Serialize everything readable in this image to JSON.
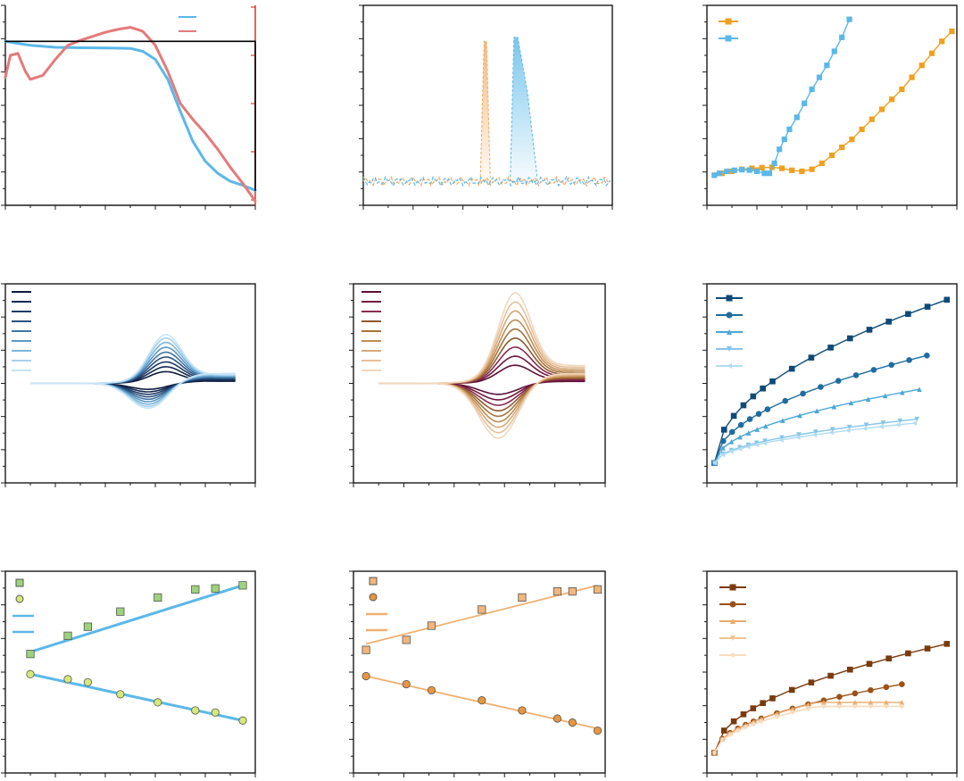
{
  "figure": {
    "colors": {
      "axis": "#1a1a1a",
      "right_axis": "#e53935"
    }
  },
  "chart_data": [
    {
      "type": "line",
      "ylim": [
        0,
        100
      ],
      "xlim": [
        0,
        10
      ],
      "y2lim": [
        0,
        100
      ],
      "legend": "top-right",
      "grid": false,
      "series": [
        {
          "color": "#5bb8e8",
          "axis": "left",
          "x": [
            0,
            0.5,
            1,
            2,
            3,
            4,
            5,
            5.5,
            6,
            6.5,
            7,
            7.5,
            8,
            8.5,
            9,
            9.5,
            10
          ],
          "y": [
            82,
            81,
            80,
            79,
            78.8,
            78.7,
            78.5,
            77,
            73,
            63,
            47,
            32,
            22,
            16,
            12,
            10,
            7.5
          ]
        },
        {
          "color": "#e47a7a",
          "axis": "right",
          "x": [
            0,
            0.2,
            0.5,
            0.8,
            1,
            1.5,
            2,
            2.5,
            3,
            3.5,
            4,
            4.5,
            5,
            5.5,
            6,
            6.5,
            7,
            7.5,
            8,
            8.5,
            9,
            9.5,
            10
          ],
          "y": [
            64,
            75,
            76,
            67,
            63,
            65,
            73,
            80,
            82.5,
            84.5,
            86.5,
            88,
            89,
            87,
            80,
            67,
            51,
            43,
            36,
            28,
            19,
            11,
            2
          ]
        },
        {
          "color": "#000000",
          "axis": "left",
          "x": [
            0,
            10,
            10
          ],
          "y": [
            82,
            82,
            7.5
          ]
        }
      ]
    },
    {
      "type": "area",
      "ylim": [
        0,
        100
      ],
      "xlim": [
        0,
        10
      ],
      "legend": "none",
      "grid": false,
      "series": [
        {
          "color": "#f0a95f",
          "x": [
            4.7,
            4.85,
            4.95,
            5.1
          ],
          "y": [
            12,
            82,
            82,
            12
          ]
        },
        {
          "color": "#5bb8e8",
          "x": [
            5.9,
            6.05,
            6.2,
            6.6,
            7.0
          ],
          "y": [
            12,
            84,
            84,
            56,
            12
          ]
        }
      ]
    },
    {
      "type": "line",
      "ylim": [
        0,
        100
      ],
      "xlim": [
        0,
        10
      ],
      "legend": "top-left",
      "grid": false,
      "series": [
        {
          "color": "#f0a020",
          "marker": "square",
          "x": [
            0.3,
            0.6,
            1,
            1.4,
            1.8,
            2.2,
            2.6,
            3,
            3.4,
            3.8,
            4.2,
            4.6,
            5,
            5.4,
            5.8,
            6.2,
            6.6,
            7,
            7.4,
            7.8,
            8.2,
            8.6,
            9,
            9.4,
            9.8
          ],
          "y": [
            15,
            16,
            17,
            18,
            18.5,
            18.8,
            19,
            18.5,
            17.5,
            17,
            18,
            21,
            25,
            29,
            33,
            38,
            43,
            48,
            53,
            58,
            64,
            70,
            76,
            82,
            87
          ]
        },
        {
          "color": "#5bb8e8",
          "marker": "square",
          "x": [
            0.3,
            0.5,
            0.8,
            1.1,
            1.4,
            1.7,
            2,
            2.3,
            2.5,
            2.7,
            2.9,
            3.1,
            3.3,
            3.6,
            3.9,
            4.2,
            4.5,
            4.8,
            5.1,
            5.4,
            5.7
          ],
          "y": [
            15,
            16,
            17,
            17.5,
            17.8,
            17.6,
            17,
            16,
            16,
            21,
            28,
            33,
            38,
            44,
            51,
            58,
            64,
            70,
            77,
            84,
            93
          ]
        }
      ]
    },
    {
      "type": "line",
      "ylim": [
        -100,
        100
      ],
      "xlim": [
        0,
        10
      ],
      "legend": "top-left",
      "grid": false,
      "series": [
        {
          "color": "#0d1b3d",
          "amp": 0.24
        },
        {
          "color": "#14284f",
          "amp": 0.34
        },
        {
          "color": "#1e3a66",
          "amp": 0.44
        },
        {
          "color": "#2a527e",
          "amp": 0.54
        },
        {
          "color": "#3f74a3",
          "amp": 0.64
        },
        {
          "color": "#5c98c4",
          "amp": 0.74
        },
        {
          "color": "#7db6dc",
          "amp": 0.84
        },
        {
          "color": "#a6d0ec",
          "amp": 0.93
        },
        {
          "color": "#c8e4f6",
          "amp": 1.0
        }
      ]
    },
    {
      "type": "line",
      "ylim": [
        -100,
        100
      ],
      "xlim": [
        0,
        10
      ],
      "legend": "top-left",
      "grid": false,
      "series": [
        {
          "color": "#5a1037",
          "amp": 0.2
        },
        {
          "color": "#731640",
          "amp": 0.3
        },
        {
          "color": "#8a2c50",
          "amp": 0.4
        },
        {
          "color": "#8f5a2e",
          "amp": 0.5
        },
        {
          "color": "#a6733c",
          "amp": 0.6
        },
        {
          "color": "#c08d55",
          "amp": 0.7
        },
        {
          "color": "#d6a877",
          "amp": 0.8
        },
        {
          "color": "#e6c09b",
          "amp": 0.9
        },
        {
          "color": "#f2d7bd",
          "amp": 1.0
        }
      ]
    },
    {
      "type": "line",
      "ylim": [
        0,
        100
      ],
      "xlim": [
        0,
        10
      ],
      "legend": "top-left",
      "grid": false,
      "series": [
        {
          "color": "#0f4a78",
          "marker": "square",
          "end": [
            9.6,
            92
          ]
        },
        {
          "color": "#1f6da0",
          "marker": "circle",
          "end": [
            8.8,
            64
          ]
        },
        {
          "color": "#49a6d6",
          "marker": "triangle",
          "end": [
            8.5,
            47
          ]
        },
        {
          "color": "#86c5ea",
          "marker": "triangle-down",
          "end": [
            8.4,
            32
          ]
        },
        {
          "color": "#b3dcf3",
          "marker": "triangle-left",
          "end": [
            8.3,
            30
          ]
        }
      ]
    },
    {
      "type": "scatter",
      "ylim": [
        0,
        100
      ],
      "xlim": [
        0,
        10
      ],
      "legend": "top-left",
      "grid": false,
      "series": [
        {
          "color": "#9dd37a",
          "marker": "square",
          "x": [
            1,
            2.5,
            3.3,
            4.6,
            6.1,
            7.6,
            8.4,
            9.5
          ],
          "y": [
            59,
            68,
            72.5,
            80,
            87,
            91,
            91.5,
            93
          ]
        },
        {
          "color": "#d5e87a",
          "marker": "circle",
          "x": [
            1,
            2.5,
            3.3,
            4.6,
            6.1,
            7.6,
            8.4,
            9.5
          ],
          "y": [
            49,
            46.5,
            45,
            39,
            35,
            31,
            30,
            26
          ]
        },
        {
          "color": "#5bb8e8",
          "fit": true,
          "x": [
            1,
            9.5
          ],
          "y": [
            60,
            93
          ]
        },
        {
          "color": "#5bb8e8",
          "fit": true,
          "x": [
            1,
            9.5
          ],
          "y": [
            49,
            26
          ]
        }
      ]
    },
    {
      "type": "scatter",
      "ylim": [
        0,
        100
      ],
      "xlim": [
        0,
        10
      ],
      "legend": "top-left",
      "grid": false,
      "series": [
        {
          "color": "#f2b57c",
          "marker": "square",
          "x": [
            0.5,
            2.1,
            3.1,
            5.1,
            6.7,
            8.1,
            8.7,
            9.7
          ],
          "y": [
            61,
            66,
            73,
            81,
            87,
            90,
            90,
            91
          ]
        },
        {
          "color": "#e7963f",
          "marker": "circle",
          "x": [
            0.5,
            2.1,
            3.1,
            5.1,
            6.7,
            8.1,
            8.7,
            9.7
          ],
          "y": [
            48,
            44,
            41,
            36,
            31,
            27,
            25,
            21
          ]
        },
        {
          "color": "#f0b070",
          "fit": true,
          "x": [
            0.5,
            9.7
          ],
          "y": [
            64,
            93
          ]
        },
        {
          "color": "#f0b070",
          "fit": true,
          "x": [
            0.5,
            9.7
          ],
          "y": [
            48,
            22
          ]
        }
      ]
    },
    {
      "type": "line",
      "ylim": [
        0,
        100
      ],
      "xlim": [
        0,
        10
      ],
      "legend": "top-left",
      "grid": false,
      "series": [
        {
          "color": "#7a3a0e",
          "marker": "square",
          "end": [
            9.6,
            64
          ]
        },
        {
          "color": "#9a5218",
          "marker": "circle",
          "end": [
            7.8,
            44
          ]
        },
        {
          "color": "#eaa86a",
          "marker": "triangle",
          "end": [
            7.8,
            35
          ]
        },
        {
          "color": "#f2c394",
          "marker": "triangle-down",
          "end": [
            7.8,
            33
          ]
        },
        {
          "color": "#f8dcc0",
          "marker": "diamond",
          "end": [
            7.8,
            33
          ]
        }
      ]
    }
  ]
}
